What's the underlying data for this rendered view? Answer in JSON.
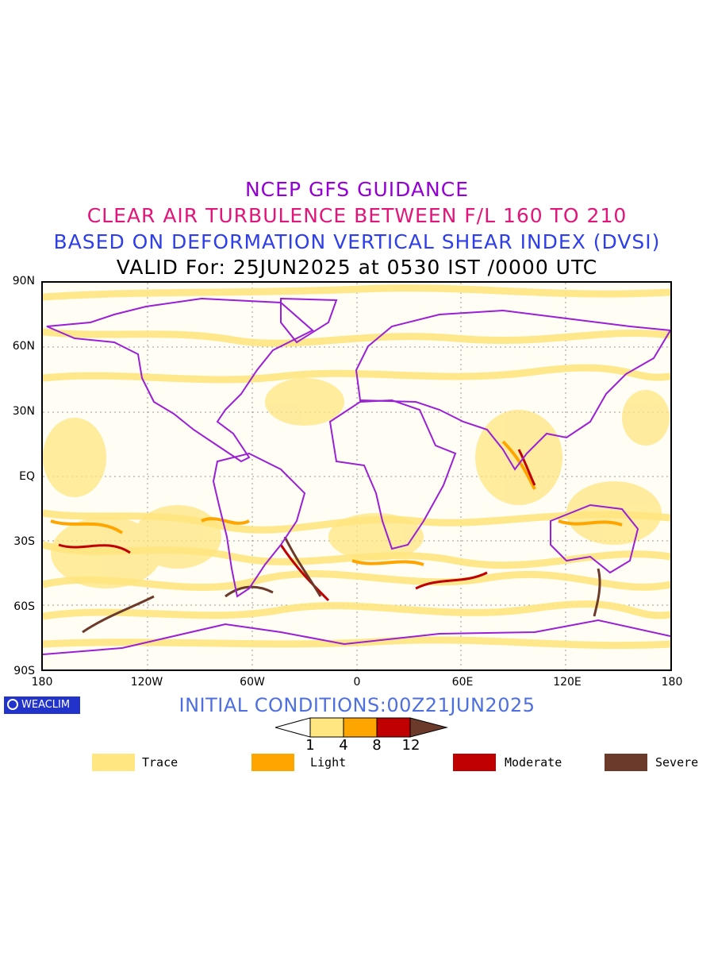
{
  "titles": {
    "line1": "NCEP GFS GUIDANCE",
    "line2": "CLEAR AIR TURBULENCE BETWEEN F/L 160 TO 210",
    "line3": "BASED ON DEFORMATION VERTICAL SHEAR INDEX (DVSI)",
    "line4": "VALID For: 25JUN2025 at 0530 IST /0000 UTC"
  },
  "axes": {
    "lat_labels": [
      "90N",
      "60N",
      "30N",
      "EQ",
      "30S",
      "60S",
      "90S"
    ],
    "lon_labels": [
      "180",
      "120W",
      "60W",
      "0",
      "60E",
      "120E",
      "180"
    ]
  },
  "logo": {
    "text": "WEACLIM"
  },
  "initial_conditions": "INITIAL CONDITIONS:00Z21JUN2025",
  "colorbar": {
    "thresholds": [
      "1",
      "4",
      "8",
      "12"
    ],
    "colors": [
      "#ffe680",
      "#ffa500",
      "#c00000",
      "#6b3a2a"
    ]
  },
  "legend": [
    {
      "label": "Trace",
      "color": "#ffe680"
    },
    {
      "label": "Light",
      "color": "#ffa500"
    },
    {
      "label": "Moderate",
      "color": "#c00000"
    },
    {
      "label": "Severe",
      "color": "#6b3a2a"
    }
  ],
  "colors": {
    "coastline": "#9b1fd6",
    "trace": "#ffe680",
    "light": "#ffa500",
    "moderate": "#c00000",
    "severe": "#6b3a2a"
  }
}
